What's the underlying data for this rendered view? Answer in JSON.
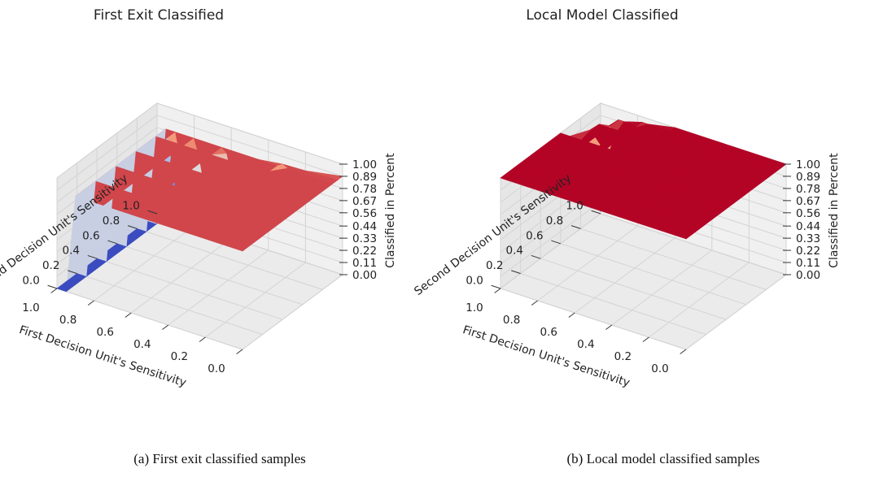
{
  "chart_data": [
    {
      "type": "surface3d",
      "title": "First Exit Classified",
      "xlabel": "First Decision Unit's Sensitivity",
      "ylabel": "Second Decision Unit's Sensitivity",
      "zlabel": "Classified in Percent",
      "xticks": [
        "0.0",
        "0.2",
        "0.4",
        "0.6",
        "0.8",
        "1.0"
      ],
      "yticks": [
        "0.0",
        "0.2",
        "0.4",
        "0.6",
        "0.8",
        "1.0"
      ],
      "zticks": [
        "0.00",
        "0.11",
        "0.22",
        "0.33",
        "0.44",
        "0.56",
        "0.67",
        "0.78",
        "0.89",
        "1.00"
      ],
      "xlim": [
        0,
        1
      ],
      "ylim": [
        0,
        1
      ],
      "zlim": [
        0,
        1
      ],
      "colormap": "coolwarm",
      "surface": {
        "x": [
          0.0,
          0.3,
          0.6,
          0.75,
          0.85,
          0.9,
          0.95,
          1.0
        ],
        "y": [
          0.0,
          0.2,
          0.4,
          0.6,
          0.8,
          0.9,
          0.95,
          1.0
        ],
        "z": [
          [
            0.89,
            0.89,
            0.89,
            0.89,
            0.89,
            0.89,
            0.0,
            0.0
          ],
          [
            0.89,
            0.89,
            0.89,
            0.89,
            0.89,
            0.89,
            0.0,
            0.0
          ],
          [
            0.89,
            0.89,
            0.89,
            0.89,
            0.89,
            0.89,
            0.0,
            0.0
          ],
          [
            0.89,
            0.89,
            0.89,
            0.89,
            0.89,
            0.89,
            0.0,
            0.0
          ],
          [
            0.89,
            0.89,
            0.89,
            0.89,
            0.89,
            0.89,
            0.0,
            0.0
          ],
          [
            0.89,
            0.89,
            0.89,
            0.89,
            0.89,
            0.89,
            0.0,
            0.0
          ],
          [
            0.89,
            0.87,
            0.8,
            0.7,
            0.62,
            0.6,
            0.0,
            0.0
          ],
          [
            0.89,
            0.8,
            0.55,
            0.4,
            0.3,
            0.25,
            0.0,
            0.0
          ]
        ]
      }
    },
    {
      "type": "surface3d",
      "title": "Local Model Classified",
      "xlabel": "First Decision Unit's Sensitivity",
      "ylabel": "Second Decision Unit's Sensitivity",
      "zlabel": "Classified in Percent",
      "xticks": [
        "0.0",
        "0.2",
        "0.4",
        "0.6",
        "0.8",
        "1.0"
      ],
      "yticks": [
        "0.0",
        "0.2",
        "0.4",
        "0.6",
        "0.8",
        "1.0"
      ],
      "zticks": [
        "0.00",
        "0.11",
        "0.22",
        "0.33",
        "0.44",
        "0.56",
        "0.67",
        "0.78",
        "0.89",
        "1.00"
      ],
      "xlim": [
        0,
        1
      ],
      "ylim": [
        0,
        1
      ],
      "zlim": [
        0,
        1
      ],
      "colormap": "coolwarm",
      "surface": {
        "x": [
          0.0,
          0.3,
          0.6,
          0.75,
          0.85,
          0.9,
          0.95,
          1.0
        ],
        "y": [
          0.0,
          0.2,
          0.4,
          0.6,
          0.8,
          0.9,
          0.95,
          1.0
        ],
        "z": [
          [
            1.0,
            1.0,
            1.0,
            1.0,
            1.0,
            1.0,
            1.0,
            1.0
          ],
          [
            1.0,
            1.0,
            1.0,
            1.0,
            1.0,
            1.0,
            1.0,
            1.0
          ],
          [
            1.0,
            1.0,
            1.0,
            1.0,
            1.0,
            1.0,
            1.0,
            1.0
          ],
          [
            1.0,
            1.0,
            1.0,
            1.0,
            1.0,
            1.0,
            1.0,
            1.0
          ],
          [
            1.0,
            1.0,
            1.0,
            1.0,
            1.0,
            1.0,
            0.92,
            0.8
          ],
          [
            1.0,
            1.0,
            1.0,
            1.0,
            1.0,
            0.92,
            0.72,
            0.55
          ],
          [
            1.0,
            1.0,
            1.0,
            1.0,
            0.95,
            0.8,
            0.5,
            0.1
          ],
          [
            1.0,
            1.0,
            1.0,
            0.95,
            0.85,
            0.62,
            0.3,
            0.02
          ]
        ]
      }
    }
  ],
  "captions": {
    "a": "(a) First exit classified samples",
    "b": "(b) Local model classified samples"
  }
}
